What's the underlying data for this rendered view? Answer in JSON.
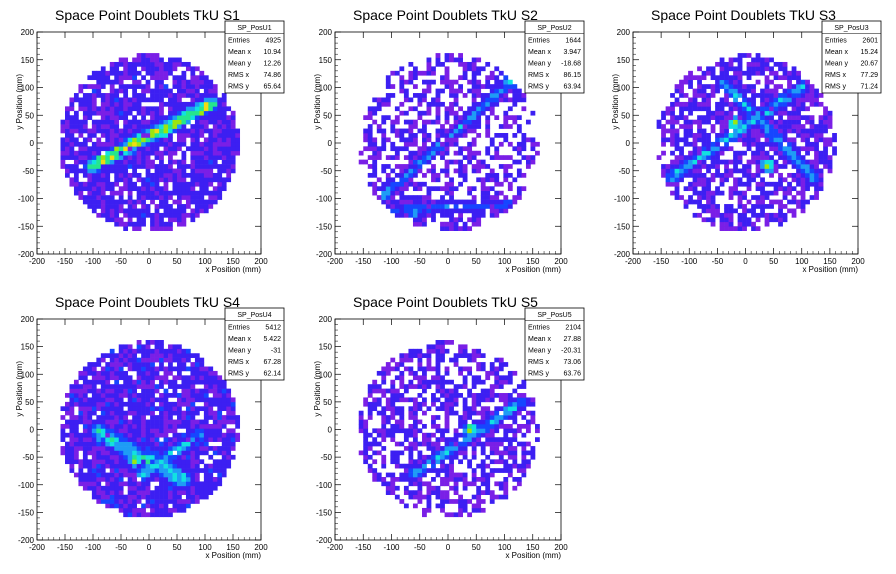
{
  "chart_data": [
    {
      "type": "heatmap",
      "title": "Space Point Doublets TkU S1",
      "xlabel": "x Position (mm)",
      "ylabel": "y Position (mm)",
      "xlim": [
        -200,
        200
      ],
      "ylim": [
        -200,
        200
      ],
      "xticks": [
        "-200",
        "-150",
        "-100",
        "-50",
        "0",
        "50",
        "100",
        "150",
        "200"
      ],
      "yticks": [
        "-200",
        "-150",
        "-100",
        "-50",
        "0",
        "50",
        "100",
        "150",
        "200"
      ],
      "stats": {
        "name": "SP_PosU1",
        "rows": [
          {
            "label": "Entries",
            "value": "4925"
          },
          {
            "label": "Mean x",
            "value": "10.94"
          },
          {
            "label": "Mean y",
            "value": "12.26"
          },
          {
            "label": "RMS x",
            "value": "74.86"
          },
          {
            "label": "RMS y",
            "value": "65.64"
          }
        ]
      },
      "seed": 11,
      "density": 0.86,
      "bg_level": 1.35,
      "tracks": [
        {
          "x1": -100,
          "y1": -40,
          "x2": 110,
          "y2": 70,
          "peak": 7.2,
          "width": 9
        }
      ],
      "hotspots": [
        {
          "x": 25,
          "y": 20,
          "v": 7.6
        }
      ]
    },
    {
      "type": "heatmap",
      "title": "Space Point Doublets TkU S2",
      "xlabel": "x Position (mm)",
      "ylabel": "y Position (mm)",
      "xlim": [
        -200,
        200
      ],
      "ylim": [
        -200,
        200
      ],
      "xticks": [
        "-200",
        "-150",
        "-100",
        "-50",
        "0",
        "50",
        "100",
        "150",
        "200"
      ],
      "yticks": [
        "-200",
        "-150",
        "-100",
        "-50",
        "0",
        "50",
        "100",
        "150",
        "200"
      ],
      "stats": {
        "name": "SP_PosU2",
        "rows": [
          {
            "label": "Entries",
            "value": "1644"
          },
          {
            "label": "Mean x",
            "value": "3.947"
          },
          {
            "label": "Mean y",
            "value": "-18.68"
          },
          {
            "label": "RMS x",
            "value": "86.15"
          },
          {
            "label": "RMS y",
            "value": "63.94"
          }
        ]
      },
      "seed": 22,
      "density": 0.55,
      "bg_level": 1.1,
      "tracks": [
        {
          "x1": -120,
          "y1": -100,
          "x2": 100,
          "y2": 100,
          "peak": 3.6,
          "width": 7
        },
        {
          "x1": -110,
          "y1": -120,
          "x2": 110,
          "y2": -110,
          "peak": 2.8,
          "width": 7
        }
      ],
      "hotspots": [
        {
          "x": 110,
          "y": 110,
          "v": 5.2
        },
        {
          "x": -60,
          "y": -125,
          "v": 4.2
        }
      ]
    },
    {
      "type": "heatmap",
      "title": "Space Point Doublets TkU S3",
      "xlabel": "x Position (mm)",
      "ylabel": "y Position (mm)",
      "xlim": [
        -200,
        200
      ],
      "ylim": [
        -200,
        200
      ],
      "xticks": [
        "-200",
        "-150",
        "-100",
        "-50",
        "0",
        "50",
        "100",
        "150",
        "200"
      ],
      "yticks": [
        "-200",
        "-150",
        "-100",
        "-50",
        "0",
        "50",
        "100",
        "150",
        "200"
      ],
      "stats": {
        "name": "SP_PosU3",
        "rows": [
          {
            "label": "Entries",
            "value": "2601"
          },
          {
            "label": "Mean x",
            "value": "15.24"
          },
          {
            "label": "Mean y",
            "value": "20.67"
          },
          {
            "label": "RMS x",
            "value": "77.29"
          },
          {
            "label": "RMS y",
            "value": "71.24"
          }
        ]
      },
      "seed": 33,
      "density": 0.7,
      "bg_level": 1.2,
      "tracks": [
        {
          "x1": -130,
          "y1": -60,
          "x2": 100,
          "y2": 100,
          "peak": 4.2,
          "width": 8
        },
        {
          "x1": -40,
          "y1": 110,
          "x2": 120,
          "y2": -60,
          "peak": 4.0,
          "width": 8
        }
      ],
      "hotspots": [
        {
          "x": 40,
          "y": -40,
          "v": 7.8
        },
        {
          "x": -20,
          "y": 35,
          "v": 7.6
        }
      ]
    },
    {
      "type": "heatmap",
      "title": "Space Point Doublets TkU S4",
      "xlabel": "x Position (mm)",
      "ylabel": "y Position (mm)",
      "xlim": [
        -200,
        200
      ],
      "ylim": [
        -200,
        200
      ],
      "xticks": [
        "-200",
        "-150",
        "-100",
        "-50",
        "0",
        "50",
        "100",
        "150",
        "200"
      ],
      "yticks": [
        "-200",
        "-150",
        "-100",
        "-50",
        "0",
        "50",
        "100",
        "150",
        "200"
      ],
      "stats": {
        "name": "SP_PosU4",
        "rows": [
          {
            "label": "Entries",
            "value": "5412"
          },
          {
            "label": "Mean x",
            "value": "5.422"
          },
          {
            "label": "Mean y",
            "value": "-31"
          },
          {
            "label": "RMS x",
            "value": "67.28"
          },
          {
            "label": "RMS y",
            "value": "62.14"
          }
        ]
      },
      "seed": 44,
      "density": 0.88,
      "bg_level": 1.4,
      "tracks": [
        {
          "x1": -90,
          "y1": -5,
          "x2": 60,
          "y2": -90,
          "peak": 4.6,
          "width": 12
        },
        {
          "x1": -10,
          "y1": -80,
          "x2": 90,
          "y2": -10,
          "peak": 4.0,
          "width": 10
        }
      ],
      "hotspots": [
        {
          "x": -25,
          "y": -55,
          "v": 7.6
        }
      ]
    },
    {
      "type": "heatmap",
      "title": "Space Point Doublets TkU S5",
      "xlabel": "x Position (mm)",
      "ylabel": "y Position (mm)",
      "xlim": [
        -200,
        200
      ],
      "ylim": [
        -200,
        200
      ],
      "xticks": [
        "-200",
        "-150",
        "-100",
        "-50",
        "0",
        "50",
        "100",
        "150",
        "200"
      ],
      "yticks": [
        "-200",
        "-150",
        "-100",
        "-50",
        "0",
        "50",
        "100",
        "150",
        "200"
      ],
      "stats": {
        "name": "SP_PosU5",
        "rows": [
          {
            "label": "Entries",
            "value": "2104"
          },
          {
            "label": "Mean x",
            "value": "27.88"
          },
          {
            "label": "Mean y",
            "value": "-20.31"
          },
          {
            "label": "RMS x",
            "value": "73.06"
          },
          {
            "label": "RMS y",
            "value": "63.76"
          }
        ]
      },
      "seed": 55,
      "density": 0.6,
      "bg_level": 1.15,
      "tracks": [
        {
          "x1": -60,
          "y1": -80,
          "x2": 130,
          "y2": 50,
          "peak": 3.9,
          "width": 8
        }
      ],
      "hotspots": [
        {
          "x": 40,
          "y": 0,
          "v": 7.8
        }
      ]
    }
  ],
  "colors": {
    "palette": [
      "#7a1fe6",
      "#3c1ff2",
      "#1646ff",
      "#1e9cf5",
      "#12e1e1",
      "#25e68e",
      "#9be60f",
      "#f0dc10",
      "#f07e08",
      "#e61410"
    ],
    "frame": "#000000",
    "background": "#ffffff"
  }
}
